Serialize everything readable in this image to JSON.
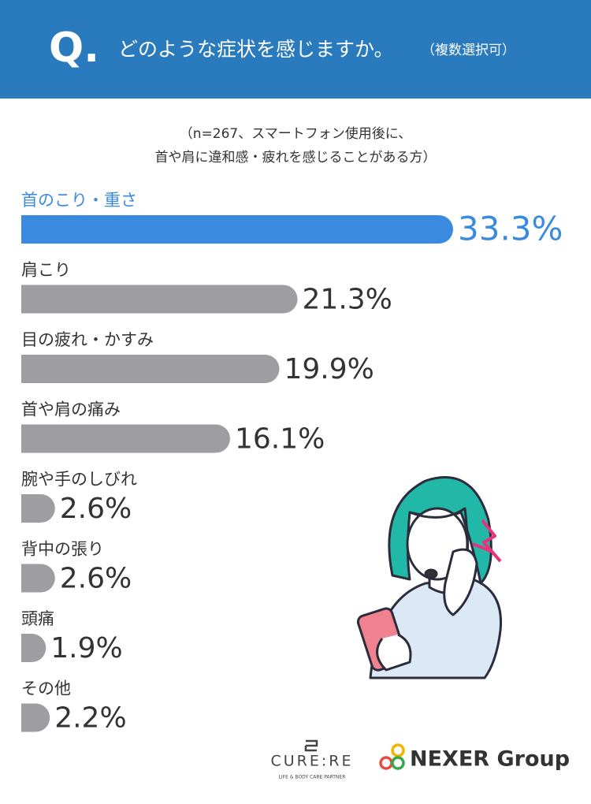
{
  "chart_data": {
    "type": "bar",
    "title_mark": "Q.",
    "title": "どのような症状を感じますか。",
    "title_note": "（複数選択可）",
    "subtitle": [
      "（n=267、スマートフォン使用後に、",
      "首や肩に違和感・疲れを感じることがある方）"
    ],
    "categories": [
      "首のこり・重さ",
      "肩こり",
      "目の疲れ・かすみ",
      "首や肩の痛み",
      "腕や手のしびれ",
      "背中の張り",
      "頭痛",
      "その他"
    ],
    "values": [
      33.3,
      21.3,
      19.9,
      16.1,
      2.6,
      2.6,
      1.9,
      2.2
    ],
    "value_labels": [
      "33.3%",
      "21.3%",
      "19.9%",
      "16.1%",
      "2.6%",
      "2.6%",
      "1.9%",
      "2.2%"
    ],
    "colors": [
      "#3a8be0",
      "#9d9da2",
      "#9d9da2",
      "#9d9da2",
      "#9d9da2",
      "#9d9da2",
      "#9d9da2",
      "#9d9da2"
    ],
    "logos": [
      "CURE:RE",
      "LIFE & BODY CARE PARTNER",
      "NEXER Group"
    ]
  }
}
